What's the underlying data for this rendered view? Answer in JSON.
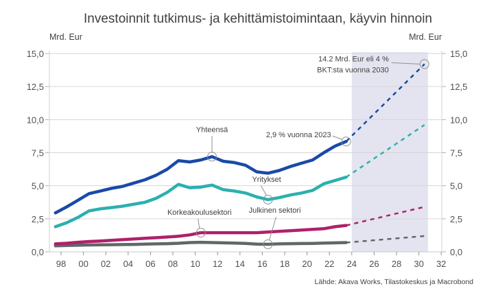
{
  "chart_data": {
    "type": "line",
    "title": "Investoinnit tutkimus- ja kehittämistoimintaan, käyvin hinnoin",
    "ylabel_left": "Mrd. Eur",
    "ylabel_right": "Mrd. Eur",
    "xlabel": "",
    "ylim": [
      0,
      15
    ],
    "xlim": [
      1997.5,
      2032
    ],
    "y_ticks": [
      "0,0",
      "2,5",
      "5,0",
      "7,5",
      "10,0",
      "12,5",
      "15,0"
    ],
    "y_tick_values": [
      0,
      2.5,
      5,
      7.5,
      10,
      12.5,
      15
    ],
    "x_ticks": [
      "98",
      "00",
      "02",
      "04",
      "06",
      "08",
      "10",
      "12",
      "14",
      "16",
      "18",
      "20",
      "22",
      "24",
      "26",
      "28",
      "30",
      "32"
    ],
    "x_tick_years": [
      1998,
      2000,
      2002,
      2004,
      2006,
      2008,
      2010,
      2012,
      2014,
      2016,
      2018,
      2020,
      2022,
      2024,
      2026,
      2028,
      2030,
      2032
    ],
    "grid": true,
    "forecast_shading": {
      "from_year": 2024,
      "to_year": 2031,
      "color": "#e4e4f0"
    },
    "x": [
      1997,
      1998,
      1999,
      2000,
      2001,
      2002,
      2003,
      2004,
      2005,
      2006,
      2007,
      2008,
      2009,
      2010,
      2011,
      2012,
      2013,
      2014,
      2015,
      2016,
      2017,
      2018,
      2019,
      2020,
      2021,
      2022,
      2023
    ],
    "series": [
      {
        "name": "Yhteensä",
        "color": "#1a4aa8",
        "values": [
          2.95,
          3.4,
          3.9,
          4.4,
          4.6,
          4.8,
          4.95,
          5.2,
          5.45,
          5.8,
          6.25,
          6.9,
          6.8,
          6.95,
          7.2,
          6.85,
          6.75,
          6.55,
          6.05,
          5.95,
          6.15,
          6.45,
          6.7,
          6.95,
          7.5,
          8.0,
          8.35
        ],
        "projection": {
          "x": [
            2023,
            2030
          ],
          "values": [
            8.35,
            14.2
          ]
        }
      },
      {
        "name": "Yritykset",
        "color": "#2bb0b0",
        "values": [
          1.9,
          2.2,
          2.6,
          3.1,
          3.25,
          3.35,
          3.45,
          3.6,
          3.75,
          4.05,
          4.5,
          5.1,
          4.85,
          4.9,
          5.05,
          4.7,
          4.6,
          4.45,
          4.15,
          3.95,
          4.1,
          4.3,
          4.45,
          4.65,
          5.15,
          5.4,
          5.65
        ],
        "projection": {
          "x": [
            2023,
            2030
          ],
          "values": [
            5.65,
            9.6
          ]
        }
      },
      {
        "name": "Korkeakoulusektori",
        "color": "#b0206a",
        "values": [
          0.6,
          0.65,
          0.72,
          0.78,
          0.82,
          0.87,
          0.92,
          0.97,
          1.02,
          1.07,
          1.12,
          1.18,
          1.28,
          1.45,
          1.45,
          1.45,
          1.45,
          1.45,
          1.45,
          1.5,
          1.55,
          1.6,
          1.65,
          1.7,
          1.75,
          1.9,
          2.0
        ],
        "projection": {
          "x": [
            2023,
            2030
          ],
          "values": [
            2.0,
            3.4
          ]
        }
      },
      {
        "name": "Julkinen sektori",
        "color": "#606868",
        "values": [
          0.45,
          0.48,
          0.5,
          0.52,
          0.53,
          0.54,
          0.55,
          0.56,
          0.58,
          0.6,
          0.62,
          0.65,
          0.7,
          0.72,
          0.7,
          0.68,
          0.66,
          0.64,
          0.58,
          0.57,
          0.6,
          0.62,
          0.63,
          0.64,
          0.66,
          0.68,
          0.7
        ],
        "projection": {
          "x": [
            2023,
            2030
          ],
          "values": [
            0.7,
            1.2
          ]
        }
      }
    ],
    "annotations": [
      {
        "text": "Yhteensä",
        "series": "Yhteensä",
        "x": 2011
      },
      {
        "text": "Yritykset",
        "series": "Yritykset",
        "x": 2016
      },
      {
        "text": "Korkeakoulusektori",
        "series": "Korkeakoulusektori",
        "x": 2010
      },
      {
        "text": "Julkinen sektori",
        "series": "Julkinen sektori",
        "x": 2016
      },
      {
        "text": "2,9 % vuonna 2023",
        "series": "Yhteensä",
        "x": 2023
      },
      {
        "text_lines": [
          "14.2 Mrd. Eur eli 4 %",
          "BKT:sta vuonna 2030"
        ],
        "series": "Yhteensä",
        "x": 2030,
        "value": 14.2
      }
    ],
    "source": "Lähde: Akava Works, Tilastokeskus ja Macrobond"
  }
}
